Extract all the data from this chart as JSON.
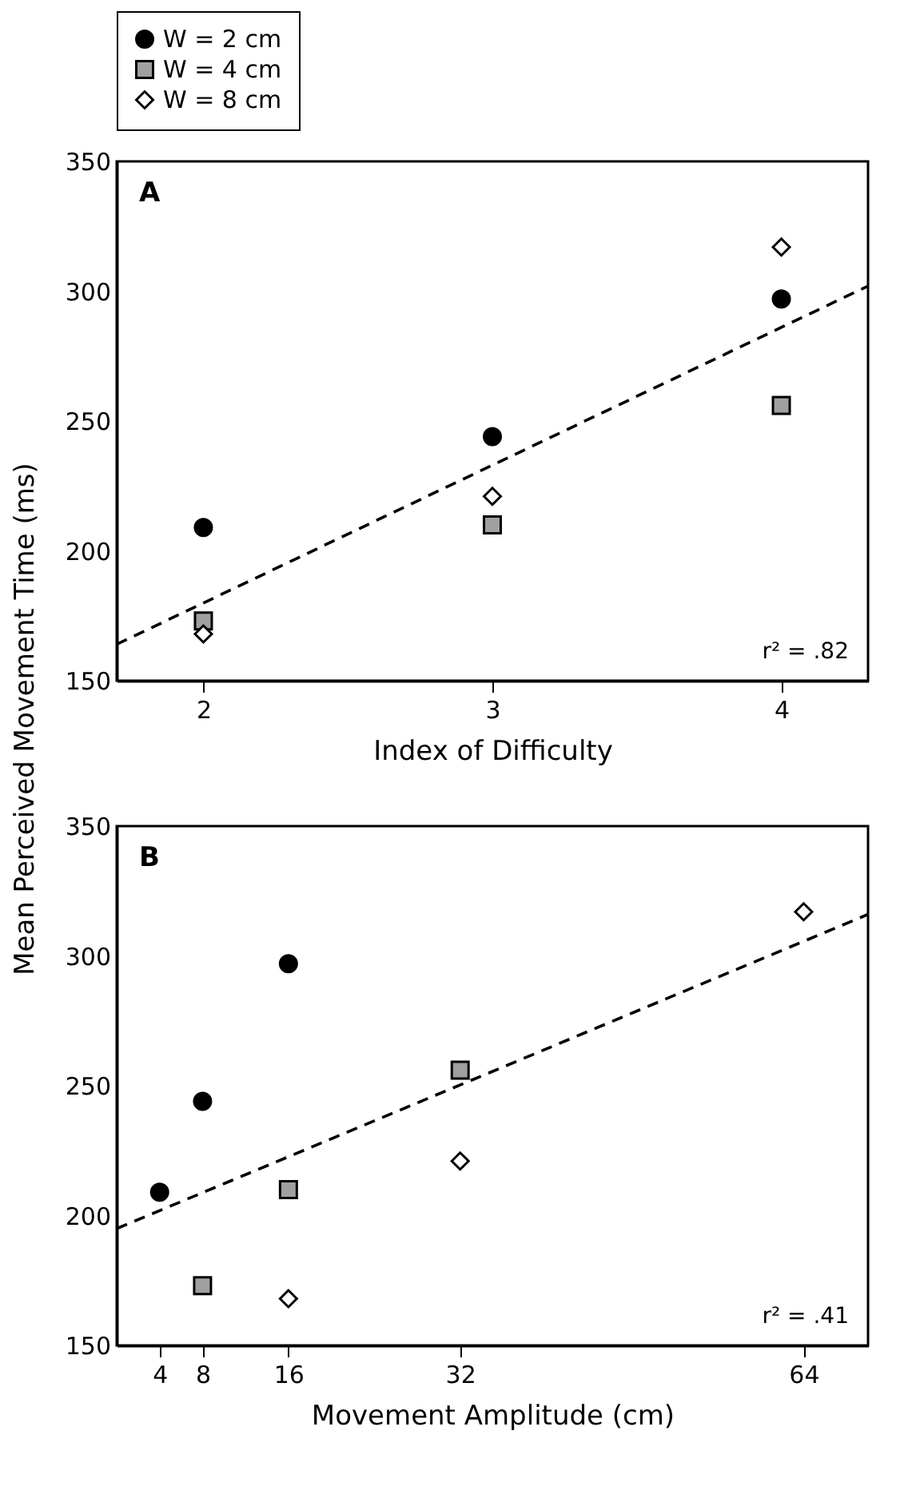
{
  "chart_data": [
    {
      "type": "scatter",
      "xlabel": "Index of Difficulty",
      "ylabel": "Mean Perceived Movement Time (ms)",
      "xlim": [
        1.7,
        4.3
      ],
      "xticks": [
        2,
        3,
        4
      ],
      "ylim": [
        150,
        350
      ],
      "yticks": [
        150,
        200,
        250,
        300,
        350
      ],
      "legend": "top",
      "grid": false,
      "annotations": [
        "A",
        "r² = .82"
      ],
      "series": [
        {
          "name": "W = 2 cm",
          "color": "#000000",
          "marker": "circle",
          "x": [
            2,
            3,
            4
          ],
          "values": [
            209,
            244,
            297
          ]
        },
        {
          "name": "W = 4 cm",
          "color": "#a0a0a0",
          "marker": "square",
          "x": [
            2,
            3,
            4
          ],
          "values": [
            173,
            210,
            256
          ]
        },
        {
          "name": "W = 8 cm",
          "color": "#ffffff",
          "marker": "diamond",
          "x": [
            2,
            3,
            4
          ],
          "values": [
            168,
            221,
            317
          ]
        },
        {
          "type": "line",
          "color": "#000000",
          "line_style": "dashed",
          "x": [
            1.7,
            4.3
          ],
          "values": [
            164,
            302
          ]
        }
      ]
    },
    {
      "type": "scatter",
      "xlabel": "Movement Amplitude (cm)",
      "xlim": [
        0,
        70
      ],
      "xticks": [
        4,
        8,
        16,
        32,
        64
      ],
      "ylim": [
        150,
        350
      ],
      "yticks": [
        150,
        200,
        250,
        300,
        350
      ],
      "legend": false,
      "grid": false,
      "annotations": [
        "B",
        "r² = .41"
      ],
      "series": [
        {
          "color": "#000000",
          "marker": "circle",
          "x": [
            4,
            8,
            16
          ],
          "values": [
            209,
            244,
            297
          ]
        },
        {
          "color": "#a0a0a0",
          "marker": "square",
          "x": [
            8,
            16,
            32
          ],
          "values": [
            173,
            210,
            256
          ]
        },
        {
          "color": "#ffffff",
          "marker": "diamond",
          "x": [
            16,
            32,
            64
          ],
          "values": [
            168,
            221,
            317
          ]
        },
        {
          "type": "line",
          "color": "#000000",
          "line_style": "dashed",
          "x": [
            0,
            70
          ],
          "values": [
            195,
            316
          ]
        }
      ]
    }
  ]
}
